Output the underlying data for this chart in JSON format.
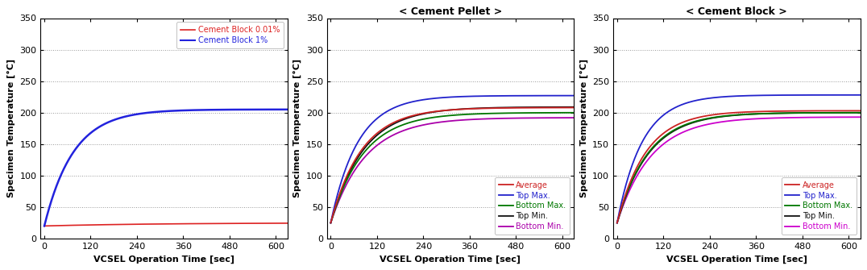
{
  "figsize": [
    10.76,
    3.35
  ],
  "dpi": 100,
  "background": "#ffffff",
  "xlabel": "VCSEL Operation Time [sec]",
  "ylabel": "Specimen Temperature [°C]",
  "xlim": [
    -10,
    630
  ],
  "ylim": [
    0,
    350
  ],
  "xticks": [
    0,
    120,
    240,
    360,
    480,
    600
  ],
  "yticks": [
    0,
    50,
    100,
    150,
    200,
    250,
    300,
    350
  ],
  "grid_color": "#999999",
  "grid_ygrid": [
    50,
    100,
    150,
    200,
    250,
    300
  ],
  "plot1": {
    "title": null,
    "legend_labels": [
      "Cement Block 0.01%",
      "Cement Block 1%"
    ],
    "legend_colors": [
      "#dd2222",
      "#2222dd"
    ],
    "curve_001": {
      "y_start": 20,
      "y_end": 25,
      "tau": 300
    },
    "curve_1": {
      "y_start": 20,
      "y_end": 205,
      "tau": 75
    }
  },
  "plot2": {
    "title": "< Cement Pellet >",
    "legend_labels": [
      "Average",
      "Top Max.",
      "Bottom Max.",
      "Top Min.",
      "Bottom Min."
    ],
    "legend_colors": [
      "#cc2222",
      "#2222cc",
      "#007700",
      "#111111",
      "#aa00aa"
    ],
    "y_start": 25,
    "final_values": [
      208,
      227,
      200,
      209,
      192
    ],
    "taus": [
      80,
      70,
      85,
      85,
      90
    ]
  },
  "plot3": {
    "title": "< Cement Block >",
    "legend_labels": [
      "Average",
      "Top Max.",
      "Bottom Max.",
      "Top Min.",
      "Bottom Min."
    ],
    "legend_colors": [
      "#cc2222",
      "#2222cc",
      "#007700",
      "#111111",
      "#cc00cc"
    ],
    "y_start": 25,
    "final_values": [
      203,
      228,
      200,
      200,
      193
    ],
    "taus": [
      75,
      65,
      80,
      82,
      88
    ]
  },
  "tick_fontsize": 8,
  "label_fontsize": 8,
  "title_fontsize": 9,
  "legend_fontsize": 7,
  "ylabel_rotation": 90
}
